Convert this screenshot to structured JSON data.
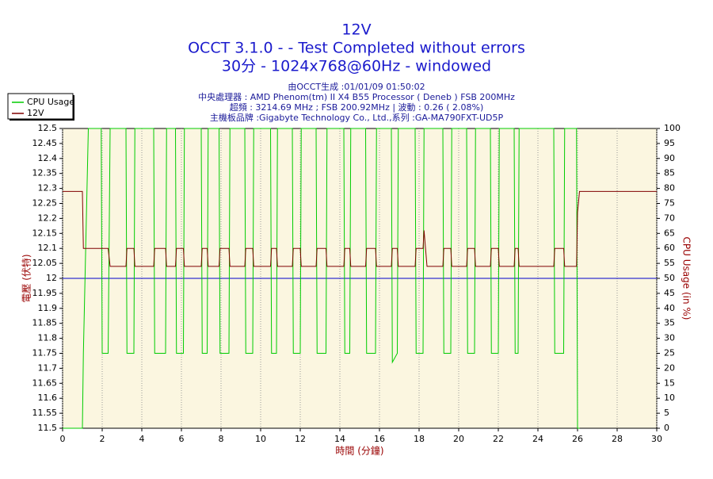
{
  "chart_data": {
    "type": "line",
    "title": "12V",
    "title_lines": [
      "OCCT 3.1.0 -  - Test Completed without errors",
      "30分 - 1024x768@60Hz - windowed"
    ],
    "subtitle_lines": [
      "由OCCT生成 :01/01/09 01:50:02",
      "中央處理器 : AMD Phenom(tm) II X4 B55 Processor ( Deneb ) FSB 200MHz",
      "超頻 : 3214.69 MHz ; FSB 200.92MHz | 波動 : 0.26 ( 2.08%)",
      "主機板品牌 :Gigabyte Technology Co., Ltd.,系列 :GA-MA790FXT-UD5P"
    ],
    "xlabel": "時間 (分鐘)",
    "ylabel": "電壓 (伏特)",
    "y2label": "CPU Usage (in %)",
    "xlim": [
      0,
      30
    ],
    "xticks": [
      0,
      2,
      4,
      6,
      8,
      10,
      12,
      14,
      16,
      18,
      20,
      22,
      24,
      26,
      28,
      30
    ],
    "ylim": [
      11.5,
      12.5
    ],
    "yticks": [
      11.5,
      11.55,
      11.6,
      11.65,
      11.7,
      11.75,
      11.8,
      11.85,
      11.9,
      11.95,
      12,
      12.05,
      12.1,
      12.15,
      12.2,
      12.25,
      12.3,
      12.35,
      12.4,
      12.45,
      12.5
    ],
    "y2lim": [
      0,
      100
    ],
    "y2ticks": [
      0,
      5,
      10,
      15,
      20,
      25,
      30,
      35,
      40,
      45,
      50,
      55,
      60,
      65,
      70,
      75,
      80,
      85,
      90,
      95,
      100
    ],
    "xgrid": true,
    "legend": "top-left",
    "hline": {
      "value": 12,
      "color": "#0000cc"
    },
    "x": [
      0,
      1.0,
      1.05,
      1.3,
      1.95,
      2.0,
      2.3,
      2.4,
      3.2,
      3.25,
      3.6,
      3.65,
      4.6,
      4.65,
      5.2,
      5.25,
      5.7,
      5.75,
      6.1,
      6.15,
      7.0,
      7.05,
      7.3,
      7.35,
      7.9,
      7.95,
      8.4,
      8.45,
      9.2,
      9.25,
      9.6,
      9.65,
      10.5,
      10.55,
      10.8,
      10.85,
      11.6,
      11.65,
      12.0,
      12.05,
      12.8,
      12.85,
      13.3,
      13.35,
      14.2,
      14.25,
      14.5,
      14.55,
      15.3,
      15.35,
      15.8,
      15.85,
      16.6,
      16.65,
      16.9,
      16.95,
      17.8,
      17.85,
      18.2,
      18.25,
      18.4,
      19.2,
      19.25,
      19.6,
      19.65,
      20.4,
      20.45,
      20.8,
      20.85,
      21.6,
      21.65,
      22.0,
      22.05,
      22.8,
      22.85,
      23.0,
      23.05,
      24.8,
      24.85,
      25.3,
      25.35,
      25.95,
      26.0,
      26.1,
      30
    ],
    "series": [
      {
        "name": "CPU Usage",
        "color": "#00cc00",
        "axis": "y2",
        "values": [
          0,
          0,
          25,
          100,
          100,
          25,
          25,
          100,
          100,
          25,
          25,
          100,
          100,
          25,
          25,
          100,
          100,
          25,
          25,
          100,
          100,
          25,
          25,
          100,
          100,
          25,
          25,
          100,
          100,
          25,
          25,
          100,
          100,
          25,
          25,
          100,
          100,
          25,
          25,
          100,
          100,
          25,
          25,
          100,
          100,
          25,
          25,
          100,
          100,
          25,
          25,
          100,
          100,
          22,
          25,
          100,
          100,
          25,
          25,
          100,
          100,
          100,
          25,
          25,
          100,
          100,
          25,
          25,
          100,
          100,
          25,
          25,
          100,
          100,
          25,
          25,
          100,
          100,
          25,
          25,
          100,
          100,
          0,
          0,
          null
        ]
      },
      {
        "name": "12V",
        "color": "#800000",
        "values": [
          12.29,
          12.29,
          12.1,
          12.1,
          12.1,
          12.1,
          12.1,
          12.04,
          12.04,
          12.1,
          12.1,
          12.04,
          12.04,
          12.1,
          12.1,
          12.04,
          12.04,
          12.1,
          12.1,
          12.04,
          12.04,
          12.1,
          12.1,
          12.04,
          12.04,
          12.1,
          12.1,
          12.04,
          12.04,
          12.1,
          12.1,
          12.04,
          12.04,
          12.1,
          12.1,
          12.04,
          12.04,
          12.1,
          12.1,
          12.04,
          12.04,
          12.1,
          12.1,
          12.04,
          12.04,
          12.1,
          12.1,
          12.04,
          12.04,
          12.1,
          12.1,
          12.04,
          12.04,
          12.1,
          12.1,
          12.04,
          12.04,
          12.1,
          12.1,
          12.16,
          12.04,
          12.04,
          12.1,
          12.1,
          12.04,
          12.04,
          12.1,
          12.1,
          12.04,
          12.04,
          12.1,
          12.1,
          12.04,
          12.04,
          12.1,
          12.1,
          12.04,
          12.04,
          12.1,
          12.1,
          12.04,
          12.04,
          12.22,
          12.29,
          12.29
        ]
      }
    ]
  }
}
